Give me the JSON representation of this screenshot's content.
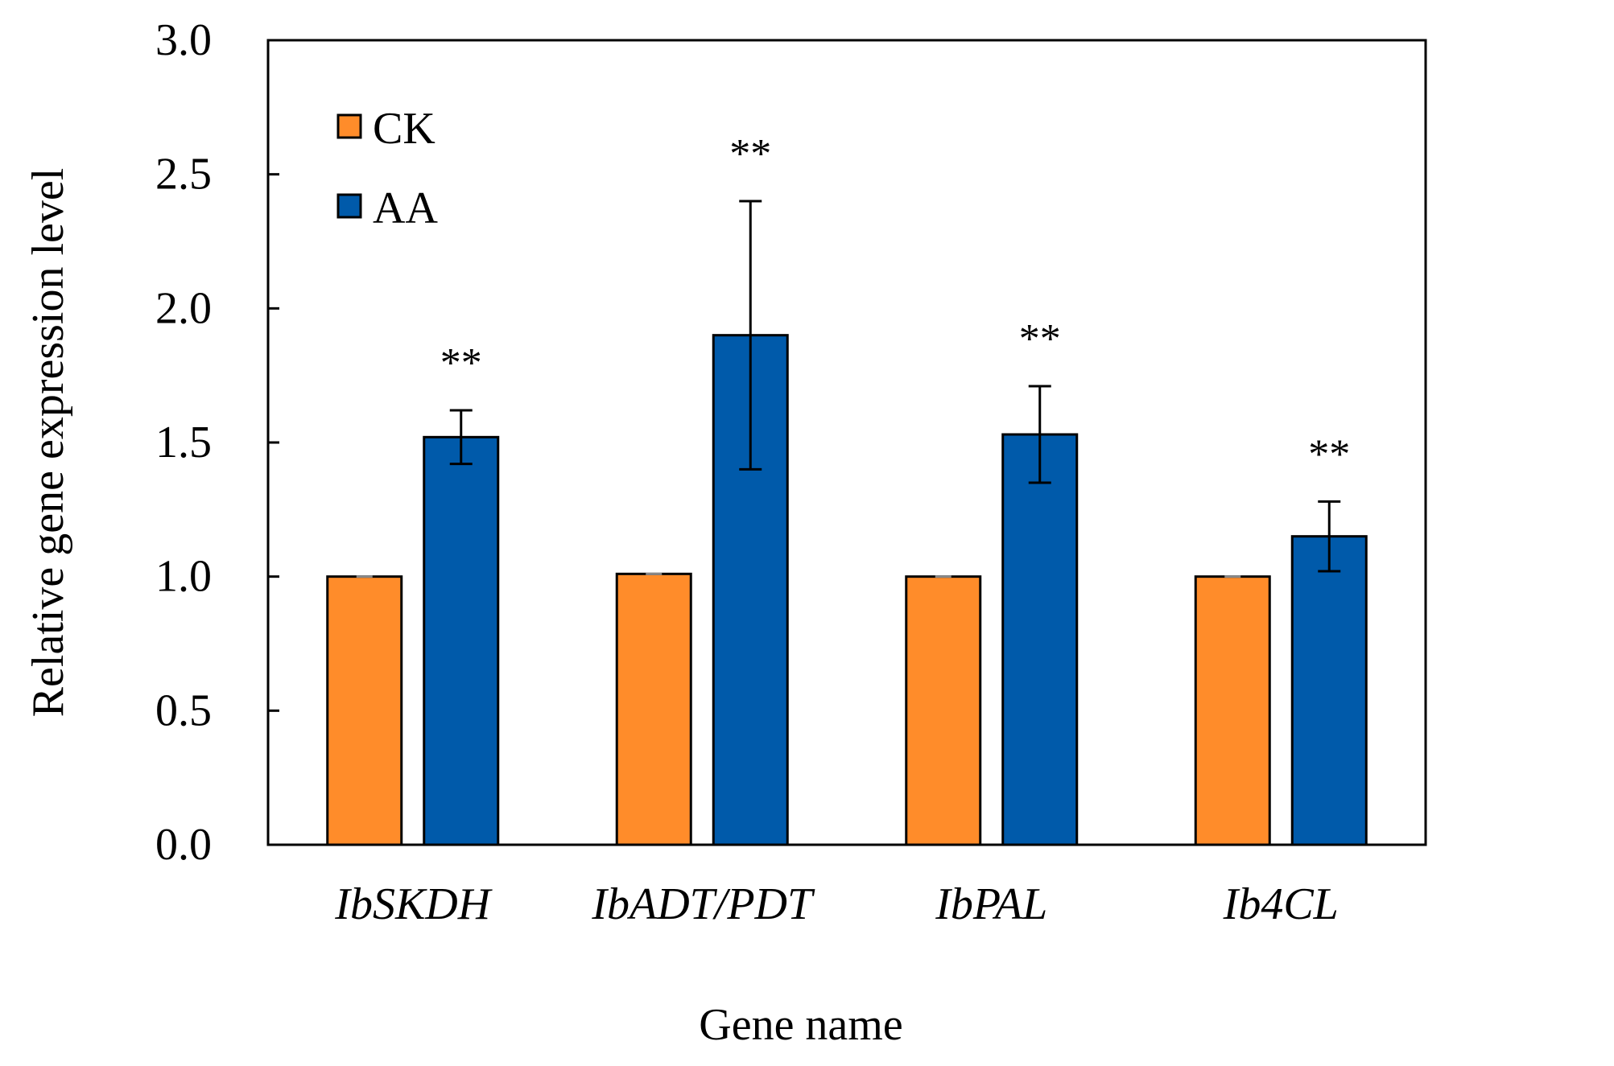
{
  "chart_data": {
    "type": "bar",
    "title": "",
    "xlabel": "Gene name",
    "ylabel": "Relative gene expression level",
    "ylim": [
      0,
      3.0
    ],
    "yticks": [
      "0.0",
      "0.5",
      "1.0",
      "1.5",
      "2.0",
      "2.5",
      "3.0"
    ],
    "grid": false,
    "legend_position": "top-left",
    "categories": [
      "IbSKDH",
      "IbADT/PDT",
      "IbPAL",
      "Ib4CL"
    ],
    "series": [
      {
        "name": "CK",
        "color": "#FF8C2A",
        "values": [
          1.0,
          1.01,
          1.0,
          1.0
        ],
        "errors": [
          0.0,
          0.0,
          0.0,
          0.0
        ]
      },
      {
        "name": "AA",
        "color": "#005AAA",
        "values": [
          1.52,
          1.9,
          1.53,
          1.15
        ],
        "errors": [
          0.1,
          0.5,
          0.18,
          0.13
        ]
      }
    ],
    "significance": [
      "**",
      "**",
      "**",
      "**"
    ]
  }
}
